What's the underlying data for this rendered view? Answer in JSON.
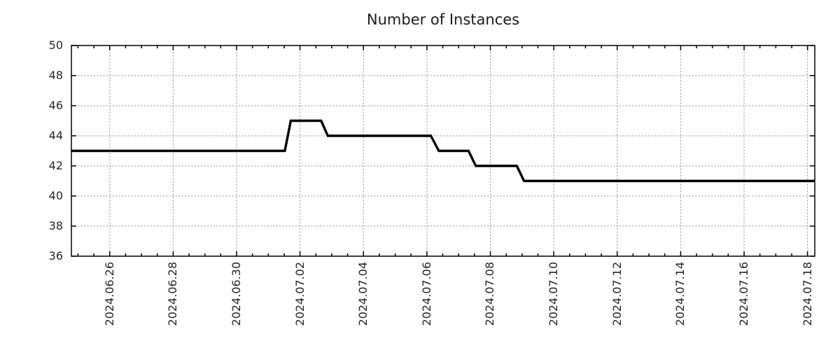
{
  "chart_data": {
    "type": "line",
    "subtype": "step-sampled",
    "title": "Number of Instances",
    "legend": "none",
    "line_width": 3.4,
    "axis_color": "#000000",
    "text_color": "#262626",
    "background_color": "#ffffff",
    "grid": {
      "show": true,
      "color": "#a3a3a3",
      "style": "dotted"
    },
    "x_axis": {
      "min": "2024-06-24 19:00",
      "max": "2024-07-18 05:30",
      "minor_tick_hours": 12,
      "major_ticks": [
        {
          "t": "2024-06-26 00:00",
          "label": "2024.06.26"
        },
        {
          "t": "2024-06-28 00:00",
          "label": "2024.06.28"
        },
        {
          "t": "2024-06-30 00:00",
          "label": "2024.06.30"
        },
        {
          "t": "2024-07-02 00:00",
          "label": "2024.07.02"
        },
        {
          "t": "2024-07-04 00:00",
          "label": "2024.07.04"
        },
        {
          "t": "2024-07-06 00:00",
          "label": "2024.07.06"
        },
        {
          "t": "2024-07-08 00:00",
          "label": "2024.07.08"
        },
        {
          "t": "2024-07-10 00:00",
          "label": "2024.07.10"
        },
        {
          "t": "2024-07-12 00:00",
          "label": "2024.07.12"
        },
        {
          "t": "2024-07-14 00:00",
          "label": "2024.07.14"
        },
        {
          "t": "2024-07-16 00:00",
          "label": "2024.07.16"
        },
        {
          "t": "2024-07-18 00:00",
          "label": "2024.07.18"
        }
      ]
    },
    "y_axis": {
      "min": 36,
      "max": 50,
      "major_step": 2,
      "ticks": [
        {
          "v": 36,
          "label": "36"
        },
        {
          "v": 38,
          "label": "38"
        },
        {
          "v": 40,
          "label": "40"
        },
        {
          "v": 42,
          "label": "42"
        },
        {
          "v": 44,
          "label": "44"
        },
        {
          "v": 46,
          "label": "46"
        },
        {
          "v": 48,
          "label": "48"
        },
        {
          "v": 50,
          "label": "50"
        }
      ]
    },
    "series": [
      {
        "name": "Number of Instances",
        "color": "#000000",
        "points": [
          [
            "2024-06-24 19:00",
            43
          ],
          [
            "2024-07-01 12:30",
            43
          ],
          [
            "2024-07-01 17:00",
            45
          ],
          [
            "2024-07-02 16:00",
            45
          ],
          [
            "2024-07-02 21:00",
            44
          ],
          [
            "2024-07-06 03:00",
            44
          ],
          [
            "2024-07-06 09:00",
            43
          ],
          [
            "2024-07-07 07:30",
            43
          ],
          [
            "2024-07-07 13:00",
            42
          ],
          [
            "2024-07-08 20:00",
            42
          ],
          [
            "2024-07-09 01:30",
            41
          ],
          [
            "2024-07-18 05:30",
            41
          ]
        ]
      }
    ]
  }
}
